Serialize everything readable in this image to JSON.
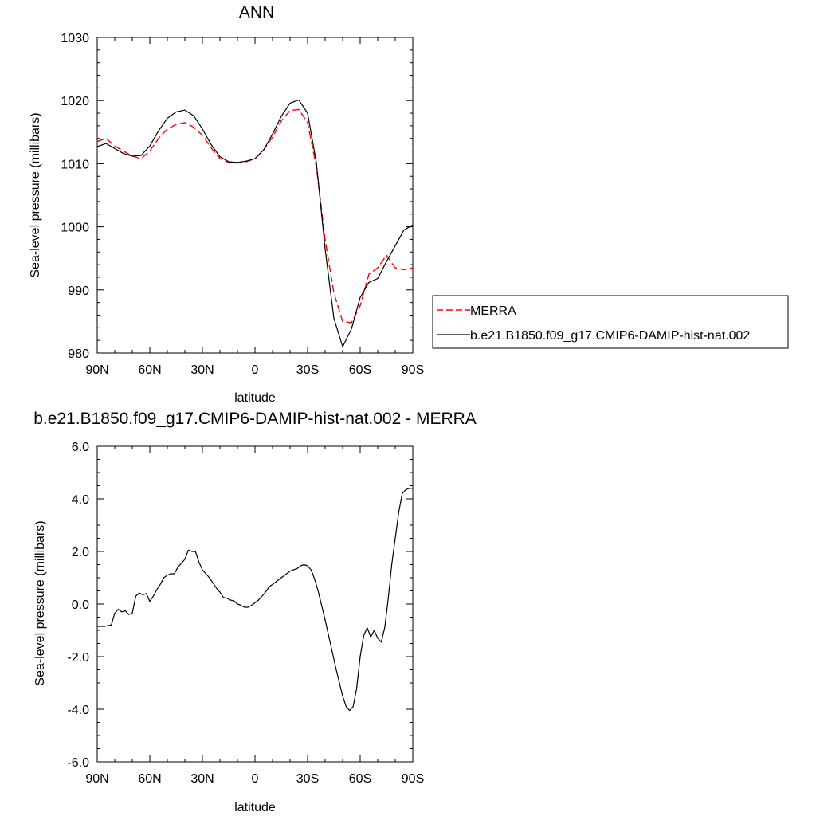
{
  "chart_data": [
    {
      "type": "line",
      "title": "ANN",
      "xlabel": "latitude",
      "ylabel": "Sea-level pressure (millibars)",
      "xlim": [
        90,
        -90
      ],
      "ylim": [
        980,
        1030
      ],
      "x_ticks": [
        {
          "value": 90,
          "label": "90N"
        },
        {
          "value": 60,
          "label": "60N"
        },
        {
          "value": 30,
          "label": "30N"
        },
        {
          "value": 0,
          "label": "0"
        },
        {
          "value": -30,
          "label": "30S"
        },
        {
          "value": -60,
          "label": "60S"
        },
        {
          "value": -90,
          "label": "90S"
        }
      ],
      "y_ticks": [
        {
          "value": 980,
          "label": "980"
        },
        {
          "value": 990,
          "label": "990"
        },
        {
          "value": 1000,
          "label": "1000"
        },
        {
          "value": 1010,
          "label": "1010"
        },
        {
          "value": 1020,
          "label": "1020"
        },
        {
          "value": 1030,
          "label": "1030"
        }
      ],
      "legend_position": "right",
      "series": [
        {
          "name": "MERRA",
          "color": "#ff0000",
          "dashed": true,
          "x": [
            90,
            85,
            80,
            75,
            70,
            65,
            60,
            55,
            50,
            45,
            40,
            35,
            30,
            25,
            20,
            15,
            10,
            5,
            0,
            -5,
            -10,
            -15,
            -20,
            -25,
            -30,
            -35,
            -40,
            -45,
            -50,
            -55,
            -60,
            -65,
            -70,
            -75,
            -80,
            -85,
            -90
          ],
          "y": [
            1013.5,
            1014.0,
            1012.8,
            1012.0,
            1011.2,
            1010.8,
            1012.0,
            1014.0,
            1015.5,
            1016.2,
            1016.5,
            1015.8,
            1014.5,
            1012.5,
            1010.8,
            1010.2,
            1010.1,
            1010.3,
            1010.8,
            1012.2,
            1014.2,
            1016.8,
            1018.4,
            1018.6,
            1016.5,
            1009.5,
            998.0,
            989.5,
            985.0,
            984.8,
            987.5,
            992.5,
            993.5,
            995.5,
            993.5,
            993.2,
            993.5
          ]
        },
        {
          "name": "b.e21.B1850.f09_g17.CMIP6-DAMIP-hist-nat.002",
          "color": "#000000",
          "dashed": false,
          "x": [
            90,
            85,
            80,
            75,
            70,
            65,
            60,
            55,
            50,
            45,
            40,
            35,
            30,
            25,
            20,
            15,
            10,
            5,
            0,
            -5,
            -10,
            -15,
            -20,
            -25,
            -30,
            -35,
            -40,
            -45,
            -50,
            -55,
            -60,
            -65,
            -70,
            -75,
            -80,
            -85,
            -90
          ],
          "y": [
            1012.7,
            1013.2,
            1012.4,
            1011.6,
            1011.2,
            1011.3,
            1012.8,
            1015.2,
            1017.2,
            1018.2,
            1018.5,
            1017.6,
            1015.5,
            1013.0,
            1011.1,
            1010.3,
            1010.2,
            1010.4,
            1010.8,
            1012.2,
            1014.7,
            1017.5,
            1019.6,
            1020.1,
            1018.0,
            1010.2,
            996.5,
            985.5,
            981.0,
            983.8,
            988.8,
            991.2,
            991.8,
            994.5,
            997.0,
            999.5,
            1000.3
          ]
        }
      ]
    },
    {
      "type": "line",
      "title": "b.e21.B1850.f09_g17.CMIP6-DAMIP-hist-nat.002 - MERRA",
      "xlabel": "latitude",
      "ylabel": "Sea-level pressure (millibars)",
      "xlim": [
        90,
        -90
      ],
      "ylim": [
        -6,
        6
      ],
      "x_ticks": [
        {
          "value": 90,
          "label": "90N"
        },
        {
          "value": 60,
          "label": "60N"
        },
        {
          "value": 30,
          "label": "30N"
        },
        {
          "value": 0,
          "label": "0"
        },
        {
          "value": -30,
          "label": "30S"
        },
        {
          "value": -60,
          "label": "60S"
        },
        {
          "value": -90,
          "label": "90S"
        }
      ],
      "y_ticks": [
        {
          "value": -6,
          "label": "-6.0"
        },
        {
          "value": -4,
          "label": "-4.0"
        },
        {
          "value": -2,
          "label": "-2.0"
        },
        {
          "value": 0,
          "label": "0.0"
        },
        {
          "value": 2,
          "label": "2.0"
        },
        {
          "value": 4,
          "label": "4.0"
        },
        {
          "value": 6,
          "label": "6.0"
        }
      ],
      "series": [
        {
          "color": "#000000",
          "dashed": false,
          "x": [
            90,
            86,
            82,
            80,
            78,
            76,
            74,
            72,
            70,
            68,
            66,
            64,
            62,
            60,
            58,
            56,
            54,
            52,
            50,
            48,
            46,
            44,
            42,
            40,
            38,
            36,
            34,
            32,
            30,
            28,
            26,
            24,
            22,
            20,
            18,
            16,
            14,
            12,
            10,
            8,
            6,
            4,
            2,
            0,
            -2,
            -4,
            -6,
            -8,
            -10,
            -12,
            -14,
            -16,
            -18,
            -20,
            -22,
            -24,
            -26,
            -28,
            -30,
            -32,
            -34,
            -36,
            -38,
            -40,
            -42,
            -44,
            -46,
            -48,
            -50,
            -52,
            -54,
            -56,
            -58,
            -60,
            -62,
            -64,
            -66,
            -68,
            -70,
            -72,
            -74,
            -76,
            -78,
            -80,
            -82,
            -84,
            -86,
            -88,
            -90
          ],
          "y": [
            -0.85,
            -0.85,
            -0.8,
            -0.35,
            -0.2,
            -0.3,
            -0.25,
            -0.4,
            -0.35,
            0.3,
            0.42,
            0.35,
            0.4,
            0.1,
            0.3,
            0.55,
            0.75,
            1.0,
            1.1,
            1.15,
            1.15,
            1.4,
            1.55,
            1.7,
            2.05,
            2.0,
            2.0,
            1.6,
            1.3,
            1.15,
            1.0,
            0.8,
            0.6,
            0.45,
            0.25,
            0.22,
            0.15,
            0.12,
            0.0,
            -0.05,
            -0.12,
            -0.12,
            -0.05,
            0.05,
            0.15,
            0.3,
            0.45,
            0.65,
            0.75,
            0.85,
            0.95,
            1.05,
            1.15,
            1.25,
            1.3,
            1.35,
            1.45,
            1.5,
            1.45,
            1.3,
            0.95,
            0.5,
            -0.05,
            -0.6,
            -1.2,
            -1.8,
            -2.4,
            -2.95,
            -3.5,
            -3.9,
            -4.05,
            -3.9,
            -3.2,
            -2.0,
            -1.2,
            -0.9,
            -1.25,
            -1.0,
            -1.3,
            -1.45,
            -0.9,
            0.2,
            1.5,
            2.5,
            3.5,
            4.2,
            4.35,
            4.4,
            4.4
          ]
        }
      ]
    }
  ]
}
